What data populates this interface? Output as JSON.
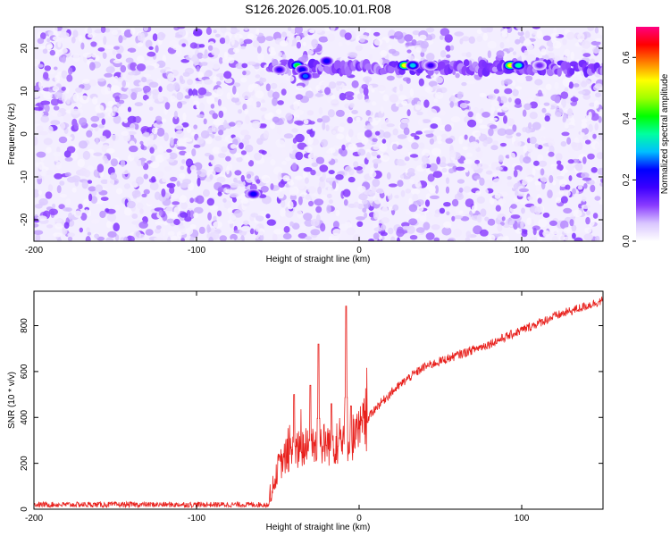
{
  "figure": {
    "title": "S126.2026.005.10.01.R08"
  },
  "chart_data": [
    {
      "type": "heatmap",
      "xlabel": "Height of straight line (km)",
      "ylabel": "Frequency (Hz)",
      "xlim": [
        -200,
        150
      ],
      "ylim": [
        -25,
        25
      ],
      "xticks": [
        -200,
        -100,
        0,
        100
      ],
      "yticks": [
        -20,
        -10,
        0,
        10,
        20
      ],
      "colorbar": {
        "label": "Normalized spectral amplitude",
        "range": [
          0,
          0.7
        ],
        "ticks": [
          0.0,
          0.2,
          0.4,
          0.6
        ],
        "colormap": [
          "#ffffff",
          "#d9c6ff",
          "#8a3cff",
          "#3c00ff",
          "#0000ff",
          "#00bfff",
          "#00ffa0",
          "#00ff00",
          "#a0ff00",
          "#ffff00",
          "#ff8000",
          "#ff0000",
          "#ff0080"
        ]
      },
      "background_level": 0.05,
      "band": {
        "frequency": 15.5,
        "x_start": -55,
        "x_end": 150,
        "level": 0.12
      },
      "hotspots": [
        {
          "x": -38,
          "y": 16,
          "value": 0.45
        },
        {
          "x": -35,
          "y": 15,
          "value": 0.25
        },
        {
          "x": -33,
          "y": 13.5,
          "value": 0.3
        },
        {
          "x": -20,
          "y": 17,
          "value": 0.25
        },
        {
          "x": -49,
          "y": 15,
          "value": 0.2
        },
        {
          "x": -65,
          "y": -14,
          "value": 0.25
        },
        {
          "x": 28,
          "y": 16,
          "value": 0.6
        },
        {
          "x": 33,
          "y": 16,
          "value": 0.35
        },
        {
          "x": 44,
          "y": 16,
          "value": 0.2
        },
        {
          "x": 93,
          "y": 16,
          "value": 0.6
        },
        {
          "x": 98,
          "y": 16,
          "value": 0.4
        },
        {
          "x": 111,
          "y": 16,
          "value": 0.15
        }
      ]
    },
    {
      "type": "line",
      "xlabel": "Height of straight line (km)",
      "ylabel": "SNR (10 * v/v)",
      "xlim": [
        -200,
        150
      ],
      "ylim": [
        0,
        950
      ],
      "xticks": [
        -200,
        -100,
        0,
        100
      ],
      "yticks": [
        0,
        200,
        400,
        600,
        800
      ],
      "series_color": "#e8201c",
      "series": [
        {
          "profile": {
            "x": [
              -200,
              -55,
              -53,
              -50,
              -45,
              -40,
              -35,
              -30,
              -25,
              -20,
              -15,
              -10,
              -5,
              0,
              5,
              10,
              20,
              30,
              40,
              60,
              80,
              100,
              120,
              150
            ],
            "y": [
              20,
              20,
              80,
              180,
              230,
              250,
              260,
              270,
              280,
              285,
              290,
              300,
              310,
              330,
              390,
              440,
              510,
              570,
              620,
              670,
              720,
              780,
              840,
              910
            ]
          },
          "spikes": [
            {
              "x": -40,
              "y": 500
            },
            {
              "x": -30,
              "y": 540
            },
            {
              "x": -25,
              "y": 720
            },
            {
              "x": -17,
              "y": 460
            },
            {
              "x": -8,
              "y": 885
            },
            {
              "x": -5,
              "y": 450
            }
          ]
        }
      ]
    }
  ]
}
